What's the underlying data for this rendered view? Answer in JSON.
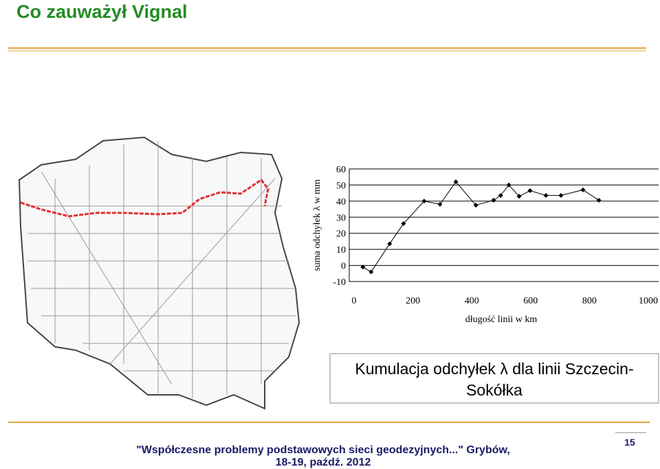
{
  "slide_title": "Co zauważył Vignal",
  "chart_data": {
    "type": "line",
    "y_label": "suma odchyłek λ w mm",
    "x_label": "długość linii w km",
    "x": [
      30,
      58,
      121,
      168,
      238,
      292,
      346,
      414,
      474,
      498,
      526,
      561,
      598,
      652,
      703,
      778,
      832
    ],
    "series": [
      {
        "name": "Szczecin-Sokółka",
        "color": "#000000",
        "values": [
          -1,
          -4,
          13.5,
          26,
          40,
          38,
          52,
          37.5,
          40.5,
          43.5,
          50,
          43,
          46.5,
          43.5,
          43.5,
          47,
          40.5
        ]
      }
    ],
    "xlim": [
      0,
      1000
    ],
    "xticks": [
      0,
      200,
      400,
      600,
      800,
      1000
    ],
    "ylim": [
      -10,
      60
    ],
    "yticks": [
      -10,
      0,
      10,
      20,
      30,
      40,
      50,
      60
    ],
    "grid": true
  },
  "caption": [
    "Kumulacja odchyłek λ dla linii Szczecin-",
    "Sokółka"
  ],
  "footer": [
    "\"Współczesne problemy podstawowych sieci geodezyjnych...\" Grybów,",
    "18-19, paźdź. 2012"
  ],
  "page_number": "15"
}
